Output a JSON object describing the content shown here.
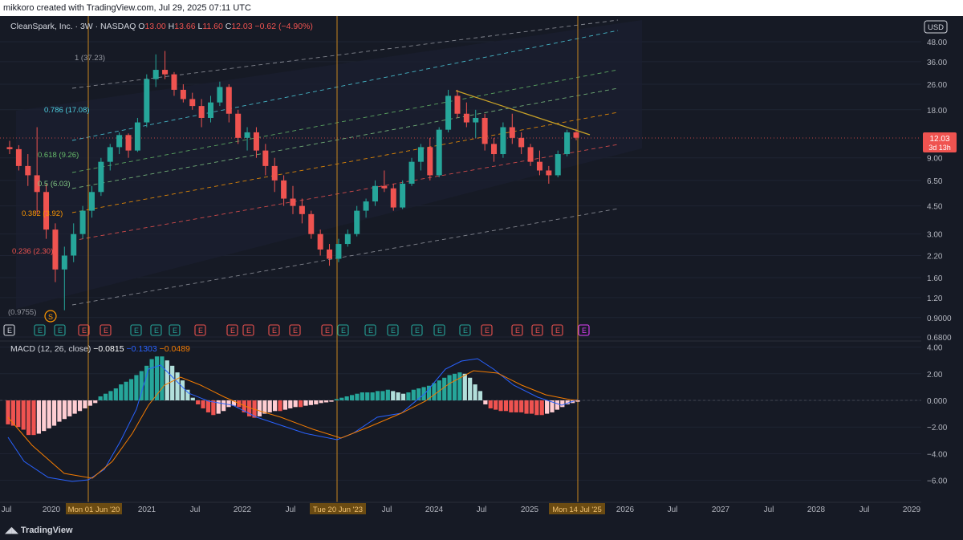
{
  "header": {
    "banner": "mikkoro created with TradingView.com, Jul 29, 2025 07:11 UTC"
  },
  "legend": {
    "symbol": "CleanSpark, Inc. · 3W · NASDAQ",
    "o_label": "O",
    "o_value": "13.00",
    "h_label": "H",
    "h_value": "13.66",
    "l_label": "L",
    "l_value": "11.60",
    "c_label": "C",
    "c_value": "12.03",
    "change": "−0.62 (−4.90%)"
  },
  "currency_button": "USD",
  "price_label": {
    "value": "12.03",
    "countdown": "3d 13h"
  },
  "colors": {
    "up": "#26a69a",
    "down": "#ef5350",
    "up_light": "#b2dfdb",
    "down_light": "#ffcdd2",
    "macd": "#2962ff",
    "signal": "#f57c00",
    "fib_orange": "#ff9800",
    "trend": "#c9a227"
  },
  "fib_labels": [
    {
      "text": "1 (37.23)",
      "color": "#9598a1"
    },
    {
      "text": "0.786 (17.08)",
      "color": "#4dd0e1"
    },
    {
      "text": "0.618 (9.26)",
      "color": "#66bb6a"
    },
    {
      "text": "0.5 (6.03)",
      "color": "#81c784"
    },
    {
      "text": "0.382 (3.92)",
      "color": "#ff9800"
    },
    {
      "text": "0.236 (2.30)",
      "color": "#ef5350"
    },
    {
      "text": "(0.9755)",
      "color": "#9598a1"
    }
  ],
  "macd_legend": {
    "name": "MACD (12, 26, close)",
    "hist": "−0.0815",
    "macd": "−0.1303",
    "signal": "−0.0489"
  },
  "price_ticks": [
    "48.00",
    "36.00",
    "26.00",
    "18.00",
    "9.00",
    "6.50",
    "4.50",
    "3.00",
    "2.20",
    "1.60",
    "1.20",
    "0.9000",
    "0.6800"
  ],
  "macd_ticks": [
    "4.00",
    "2.00",
    "0.000",
    "−2.00",
    "−4.00",
    "−6.00"
  ],
  "time_ticks": [
    "Jul",
    "2020",
    "2021",
    "Jul",
    "2022",
    "Jul",
    "Jul",
    "2024",
    "Jul",
    "2025",
    "2026",
    "Jul",
    "2027",
    "Jul",
    "2028",
    "Jul",
    "2029"
  ],
  "vline_labels": [
    "Mon 01 Jun '20",
    "Tue 20 Jun '23",
    "Mon 14 Jul '25"
  ],
  "markers": {
    "dividend": "S",
    "earnings": "E"
  },
  "footer": {
    "brand": "TradingView"
  },
  "chart_data": {
    "type": "candlestick",
    "title": "CleanSpark, Inc. · 3W · NASDAQ",
    "y_scale": "log",
    "ylim": [
      0.68,
      55
    ],
    "timeframe": "3W",
    "candles_approx": [
      [
        10.5,
        11.5,
        9.5,
        10.2
      ],
      [
        10.2,
        10.8,
        7.5,
        8.0
      ],
      [
        8.0,
        9.5,
        6.0,
        7.0
      ],
      [
        7.0,
        14,
        4.0,
        5.5
      ],
      [
        5.5,
        6.2,
        2.8,
        3.2
      ],
      [
        3.2,
        3.5,
        1.5,
        1.8
      ],
      [
        1.8,
        2.5,
        1.0,
        2.2
      ],
      [
        2.2,
        3.5,
        2.0,
        3.0
      ],
      [
        3.0,
        4.5,
        2.8,
        4.2
      ],
      [
        4.2,
        6.0,
        3.8,
        5.5
      ],
      [
        5.5,
        9.0,
        5.2,
        8.5
      ],
      [
        8.5,
        11,
        7.5,
        10.5
      ],
      [
        10.5,
        13,
        9.5,
        12.5
      ],
      [
        12.5,
        12.8,
        9.0,
        10.0
      ],
      [
        10.0,
        16,
        9.8,
        15
      ],
      [
        15,
        30,
        14,
        28
      ],
      [
        28,
        40,
        25,
        32
      ],
      [
        32,
        42,
        28,
        30
      ],
      [
        30,
        31,
        22,
        24
      ],
      [
        24,
        26,
        20,
        21
      ],
      [
        21,
        23,
        18,
        19
      ],
      [
        19,
        21,
        14,
        16
      ],
      [
        16,
        22,
        15,
        20
      ],
      [
        20,
        27,
        19,
        25
      ],
      [
        25,
        26,
        15,
        17
      ],
      [
        17,
        18,
        11,
        12
      ],
      [
        12,
        14,
        10,
        13
      ],
      [
        13,
        14,
        9,
        10
      ],
      [
        10,
        11,
        7,
        8
      ],
      [
        8,
        9,
        5.5,
        6.5
      ],
      [
        6.5,
        7,
        4.5,
        5
      ],
      [
        5,
        6,
        4,
        4.5
      ],
      [
        4.5,
        5,
        3.5,
        4
      ],
      [
        4,
        4.2,
        2.8,
        3
      ],
      [
        3,
        3.2,
        2.2,
        2.4
      ],
      [
        2.4,
        2.6,
        1.9,
        2.1
      ],
      [
        2.1,
        2.8,
        2.0,
        2.6
      ],
      [
        2.6,
        3.2,
        2.5,
        3.0
      ],
      [
        3.0,
        4.5,
        2.9,
        4.2
      ],
      [
        4.2,
        5.0,
        3.8,
        4.8
      ],
      [
        4.8,
        6.5,
        4.5,
        6.0
      ],
      [
        6.0,
        7.5,
        5.5,
        5.8
      ],
      [
        5.8,
        6.2,
        4.2,
        4.4
      ],
      [
        4.4,
        6.5,
        4.3,
        6.2
      ],
      [
        6.2,
        9.0,
        6.0,
        8.5
      ],
      [
        8.5,
        11,
        7.5,
        10.5
      ],
      [
        10.5,
        12,
        6.5,
        7.0
      ],
      [
        7.0,
        14,
        6.8,
        13.5
      ],
      [
        13.5,
        24,
        13,
        22
      ],
      [
        22,
        24,
        16,
        17
      ],
      [
        17,
        20,
        14,
        15
      ],
      [
        15,
        18,
        12,
        16
      ],
      [
        16,
        17,
        10,
        11
      ],
      [
        11,
        12,
        8.5,
        9.5
      ],
      [
        9.5,
        15,
        9,
        14
      ],
      [
        14,
        17,
        11,
        12
      ],
      [
        12,
        13,
        9.5,
        10.5
      ],
      [
        10.5,
        11,
        8,
        8.5
      ],
      [
        8.5,
        10,
        7,
        7.5
      ],
      [
        7.5,
        8,
        6.2,
        7.0
      ],
      [
        7.0,
        10,
        6.8,
        9.5
      ],
      [
        9.5,
        13.5,
        9.2,
        13
      ],
      [
        13,
        13.66,
        11.6,
        12.03
      ]
    ],
    "macd_range": [
      -6,
      4
    ]
  }
}
